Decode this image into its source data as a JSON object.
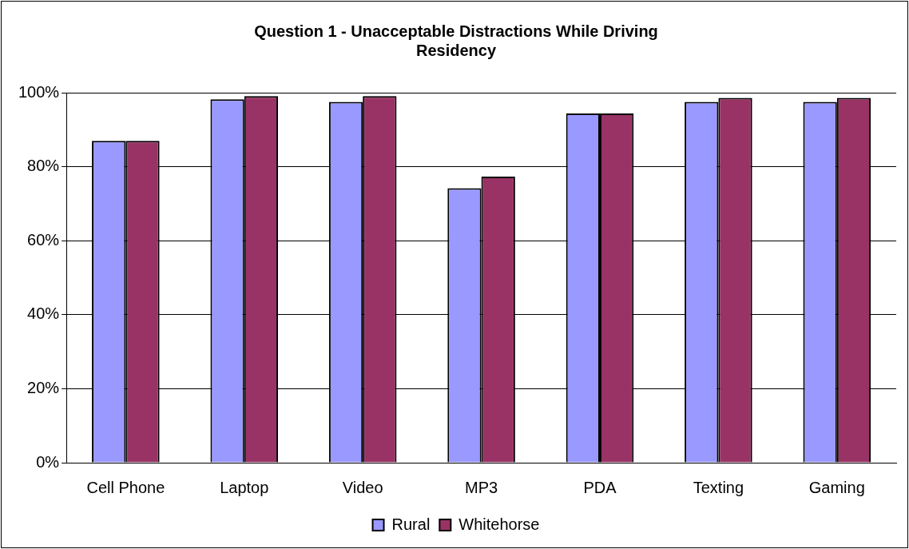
{
  "chart_data": {
    "type": "bar",
    "title": [
      "Question 1 - Unacceptable Distractions While Driving",
      "Residency"
    ],
    "categories": [
      "Cell Phone",
      "Laptop",
      "Video",
      "MP3",
      "PDA",
      "Texting",
      "Gaming"
    ],
    "series": [
      {
        "name": "Rural",
        "color": "#9999ff",
        "values": [
          87,
          98.2,
          97.5,
          74.2,
          94.4,
          97.5,
          97.5
        ]
      },
      {
        "name": "Whitehorse",
        "color": "#993366",
        "values": [
          87,
          99.1,
          99.1,
          77.3,
          94.4,
          98.6,
          98.6
        ]
      }
    ],
    "ylim": [
      0,
      100
    ],
    "yticks": [
      {
        "value": 0,
        "label": "0%"
      },
      {
        "value": 20,
        "label": "20%"
      },
      {
        "value": 40,
        "label": "40%"
      },
      {
        "value": 60,
        "label": "60%"
      },
      {
        "value": 80,
        "label": "80%"
      },
      {
        "value": 100,
        "label": "100%"
      }
    ],
    "grid": "y",
    "legend": "bottom"
  }
}
